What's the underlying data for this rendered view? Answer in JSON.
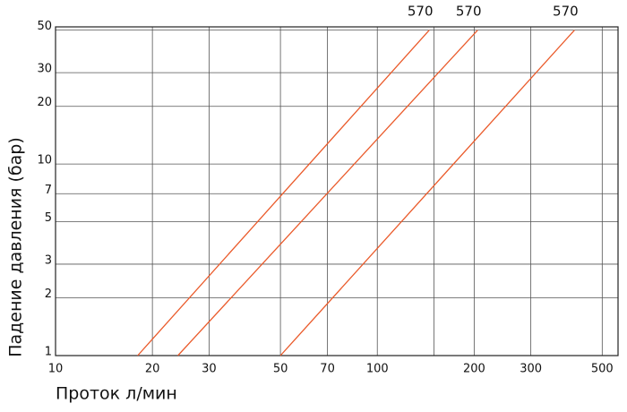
{
  "chart_data": {
    "type": "line",
    "x_label": "Проток л/мин",
    "y_label": "Падение давления (бар)",
    "log_x": true,
    "log_y": true,
    "grid": true,
    "xlim": [
      10,
      560
    ],
    "ylim": [
      1,
      52
    ],
    "xticks": [
      10,
      20,
      30,
      50,
      70,
      100,
      {
        "value": 150,
        "label": null
      },
      200,
      300,
      500
    ],
    "yticks": [
      1,
      2,
      3,
      5,
      7,
      10,
      20,
      30,
      50
    ],
    "series": [
      {
        "name": "570",
        "color": "#ea5a2a",
        "x": [
          18,
          145
        ],
        "values": [
          1,
          50
        ]
      },
      {
        "name": "570",
        "color": "#ea5a2a",
        "x": [
          24,
          205
        ],
        "values": [
          1,
          50
        ]
      },
      {
        "name": "570",
        "color": "#ea5a2a",
        "x": [
          50,
          410
        ],
        "values": [
          1,
          50
        ]
      }
    ]
  }
}
